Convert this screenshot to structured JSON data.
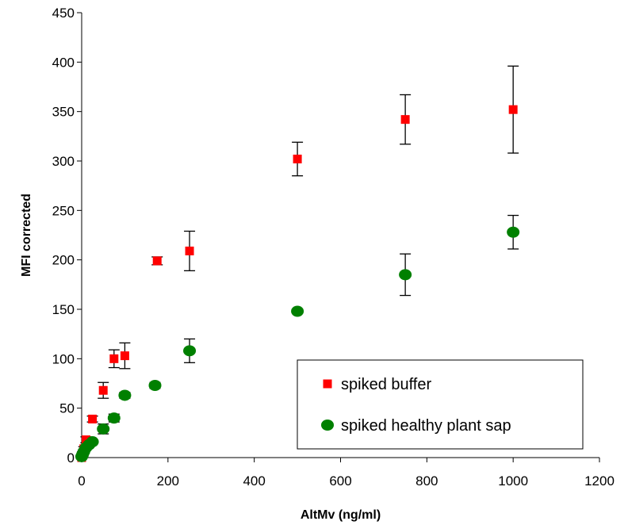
{
  "chart_data": {
    "type": "scatter",
    "xlabel": "AltMv (ng/ml)",
    "ylabel": "MFI corrected",
    "xlim": [
      0,
      1200
    ],
    "ylim": [
      0,
      450
    ],
    "xticks": [
      0,
      200,
      400,
      600,
      800,
      1000,
      1200
    ],
    "yticks": [
      0,
      50,
      100,
      150,
      200,
      250,
      300,
      350,
      400,
      450
    ],
    "xtick_labels": [
      "0",
      "200",
      "400",
      "600",
      "800",
      "1000",
      "1200"
    ],
    "ytick_labels": [
      "0",
      "50",
      "100",
      "150",
      "200",
      "250",
      "300",
      "350",
      "400",
      "450"
    ],
    "grid": false,
    "legend_position": "bottom-right",
    "series": [
      {
        "name": "spiked buffer",
        "marker": "square",
        "color": "#ff0000",
        "points": [
          {
            "x": 0,
            "y": 0,
            "err": 1
          },
          {
            "x": 2,
            "y": 4,
            "err": 2
          },
          {
            "x": 5,
            "y": 9,
            "err": 2
          },
          {
            "x": 10,
            "y": 18,
            "err": 3
          },
          {
            "x": 25,
            "y": 39,
            "err": 3
          },
          {
            "x": 50,
            "y": 68,
            "err": 8
          },
          {
            "x": 75,
            "y": 100,
            "err": 9
          },
          {
            "x": 100,
            "y": 103,
            "err": 13
          },
          {
            "x": 175,
            "y": 199,
            "err": 4
          },
          {
            "x": 250,
            "y": 209,
            "err": 20
          },
          {
            "x": 500,
            "y": 302,
            "err": 17
          },
          {
            "x": 750,
            "y": 342,
            "err": 25
          },
          {
            "x": 1000,
            "y": 352,
            "err": 44
          }
        ]
      },
      {
        "name": "spiked healthy plant sap",
        "marker": "circle",
        "color": "#008000",
        "points": [
          {
            "x": 0,
            "y": 1,
            "err": 0
          },
          {
            "x": 2,
            "y": 3,
            "err": 1
          },
          {
            "x": 5,
            "y": 6,
            "err": 1
          },
          {
            "x": 10,
            "y": 10,
            "err": 2
          },
          {
            "x": 17,
            "y": 13,
            "err": 2
          },
          {
            "x": 25,
            "y": 16,
            "err": 2
          },
          {
            "x": 50,
            "y": 29,
            "err": 5
          },
          {
            "x": 75,
            "y": 40,
            "err": 4
          },
          {
            "x": 100,
            "y": 63,
            "err": 3
          },
          {
            "x": 170,
            "y": 73,
            "err": 3
          },
          {
            "x": 250,
            "y": 108,
            "err": 12
          },
          {
            "x": 500,
            "y": 148,
            "err": 2
          },
          {
            "x": 750,
            "y": 185,
            "err": 21
          },
          {
            "x": 1000,
            "y": 228,
            "err": 17
          }
        ]
      }
    ]
  }
}
